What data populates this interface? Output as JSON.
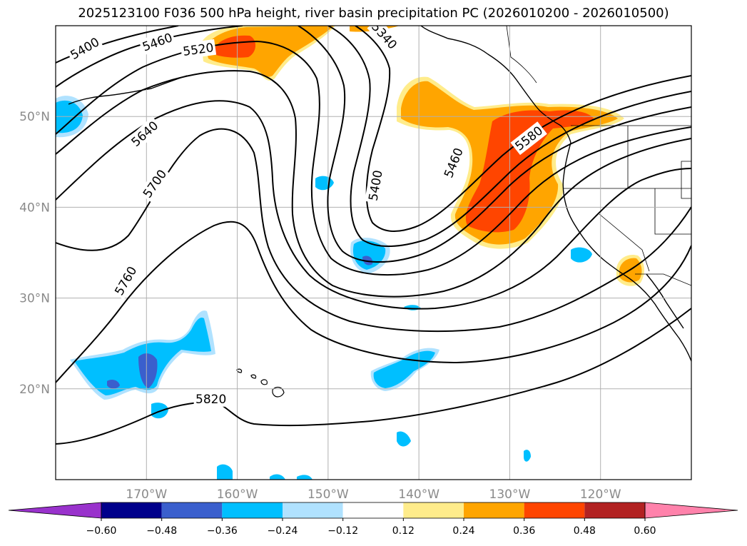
{
  "title": "2025123100 F036 500 hPa height, river basin precipitation PC (2026010200 - 2026010500)",
  "map": {
    "lon_range": [
      -180,
      -110
    ],
    "lat_range": [
      10,
      60
    ],
    "lon_ticks": [
      {
        "lon": -170,
        "label": "170°W"
      },
      {
        "lon": -160,
        "label": "160°W"
      },
      {
        "lon": -150,
        "label": "150°W"
      },
      {
        "lon": -140,
        "label": "140°W"
      },
      {
        "lon": -130,
        "label": "130°W"
      },
      {
        "lon": -120,
        "label": "120°W"
      }
    ],
    "lat_ticks": [
      {
        "lat": 20,
        "label": "20°N"
      },
      {
        "lat": 30,
        "label": "30°N"
      },
      {
        "lat": 40,
        "label": "40°N"
      },
      {
        "lat": 50,
        "label": "50°N"
      }
    ],
    "contour_labels": [
      {
        "text": "5400",
        "lon": -176.8,
        "lat": 57.5,
        "angle": -30
      },
      {
        "text": "5460",
        "lon": -168.8,
        "lat": 58.2,
        "angle": -20
      },
      {
        "text": "5520",
        "lon": -164.3,
        "lat": 57.4,
        "angle": -8
      },
      {
        "text": "5340",
        "lon": -143.8,
        "lat": 58.9,
        "angle": 48
      },
      {
        "text": "5640",
        "lon": -170.2,
        "lat": 48.1,
        "angle": -42
      },
      {
        "text": "5700",
        "lon": -169.1,
        "lat": 42.6,
        "angle": -55
      },
      {
        "text": "5400",
        "lon": -144.8,
        "lat": 42.4,
        "angle": -80
      },
      {
        "text": "5460",
        "lon": -136.2,
        "lat": 44.9,
        "angle": -68
      },
      {
        "text": "5580",
        "lon": -127.9,
        "lat": 47.6,
        "angle": -38
      },
      {
        "text": "5760",
        "lon": -172.3,
        "lat": 31.9,
        "angle": -60
      },
      {
        "text": "5820",
        "lon": -162.9,
        "lat": 18.9,
        "angle": 0
      }
    ]
  },
  "colorbar": {
    "levels": [
      -0.6,
      -0.48,
      -0.36,
      -0.24,
      -0.12,
      0.12,
      0.24,
      0.36,
      0.48,
      0.6
    ],
    "labels": [
      "−0.60",
      "−0.48",
      "−0.36",
      "−0.24",
      "−0.12",
      "0.12",
      "0.24",
      "0.36",
      "0.48",
      "0.60"
    ],
    "colors": [
      "#9932cc",
      "#00008b",
      "#3a5fcd",
      "#00bfff",
      "#b0e2ff",
      "#ffffff",
      "#ffec8b",
      "#ffa500",
      "#ff4500",
      "#b22222",
      "#ff82ab"
    ]
  }
}
